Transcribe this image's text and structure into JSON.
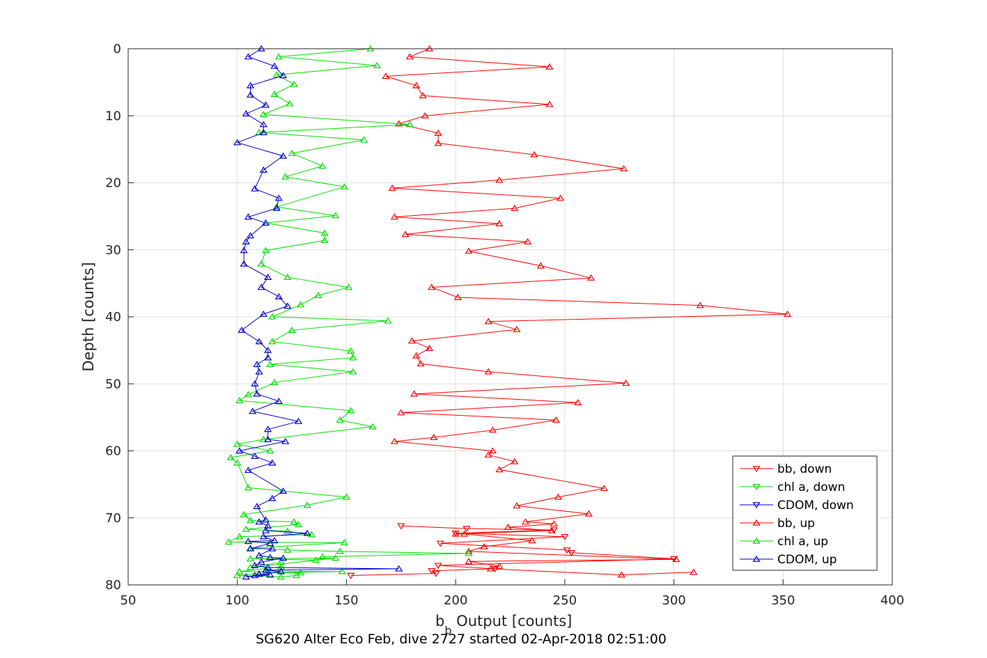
{
  "chart_data": {
    "type": "line",
    "xlabel": "b",
    "xlabel_sub": "b",
    "xlabel_rest": " Output [counts]",
    "ylabel": "Depth [counts]",
    "caption": "SG620 Alter Eco Feb, dive 2727 started 02-Apr-2018 02:51:00",
    "xlim": [
      50,
      400
    ],
    "ylim": [
      0,
      80
    ],
    "y_reversed": true,
    "grid": true,
    "legend_position": "bottom-right",
    "xticks": [
      50,
      100,
      150,
      200,
      250,
      300,
      350,
      400
    ],
    "yticks": [
      0,
      10,
      20,
      30,
      40,
      50,
      60,
      70,
      80
    ],
    "series": [
      {
        "name": "bb, down",
        "color": "#ff0000",
        "marker": "triangle-down",
        "points": [
          [
            175,
            71.2
          ],
          [
            205,
            71.6
          ],
          [
            245,
            71.8
          ],
          [
            200,
            72.3
          ],
          [
            250,
            72.8
          ],
          [
            193,
            73.8
          ],
          [
            251,
            74.8
          ],
          [
            253,
            75.2
          ],
          [
            300,
            76.1
          ],
          [
            192,
            77.1
          ],
          [
            218,
            77.6
          ],
          [
            189,
            77.9
          ],
          [
            191,
            78.3
          ],
          [
            152,
            78.6
          ]
        ]
      },
      {
        "name": "chl a, down",
        "color": "#00dd00",
        "marker": "triangle-down",
        "points": []
      },
      {
        "name": "CDOM, down",
        "color": "#0000cc",
        "marker": "triangle-down",
        "points": []
      },
      {
        "name": "bb, up",
        "color": "#ff0000",
        "marker": "triangle-up",
        "points": [
          [
            188,
            0
          ],
          [
            179,
            1.2
          ],
          [
            243,
            2.7
          ],
          [
            168,
            4.1
          ],
          [
            182,
            5.5
          ],
          [
            185,
            7.0
          ],
          [
            243,
            8.3
          ],
          [
            186,
            10.0
          ],
          [
            174,
            11.2
          ],
          [
            192,
            12.6
          ],
          [
            192,
            14.1
          ],
          [
            236,
            15.8
          ],
          [
            277,
            17.9
          ],
          [
            220,
            19.6
          ],
          [
            171,
            20.8
          ],
          [
            248,
            22.3
          ],
          [
            227,
            23.8
          ],
          [
            172,
            25.1
          ],
          [
            220,
            26.1
          ],
          [
            177,
            27.7
          ],
          [
            233,
            28.8
          ],
          [
            206,
            30.2
          ],
          [
            239,
            32.4
          ],
          [
            262,
            34.2
          ],
          [
            189,
            35.6
          ],
          [
            201,
            37.1
          ],
          [
            312,
            38.3
          ],
          [
            352,
            39.6
          ],
          [
            215,
            40.7
          ],
          [
            228,
            41.9
          ],
          [
            180,
            43.6
          ],
          [
            188,
            44.7
          ],
          [
            182,
            45.8
          ],
          [
            184,
            47.0
          ],
          [
            215,
            48.2
          ],
          [
            278,
            49.9
          ],
          [
            181,
            51.5
          ],
          [
            256,
            52.8
          ],
          [
            175,
            54.3
          ],
          [
            246,
            55.4
          ],
          [
            217,
            56.9
          ],
          [
            190,
            58.0
          ],
          [
            172,
            58.6
          ],
          [
            217,
            60.0
          ],
          [
            215,
            60.6
          ],
          [
            227,
            61.6
          ],
          [
            220,
            62.8
          ],
          [
            268,
            65.6
          ],
          [
            247,
            66.9
          ],
          [
            228,
            68.2
          ],
          [
            261,
            69.4
          ],
          [
            232,
            70.6
          ],
          [
            245,
            70.9
          ],
          [
            224,
            71.4
          ],
          [
            244,
            71.9
          ],
          [
            200,
            72.4
          ],
          [
            204,
            72.4
          ],
          [
            235,
            73.4
          ],
          [
            213,
            74.3
          ],
          [
            206,
            75.0
          ],
          [
            301,
            76.2
          ],
          [
            206,
            76.5
          ],
          [
            220,
            77.2
          ],
          [
            216,
            77.6
          ],
          [
            276,
            78.5
          ],
          [
            309,
            78.1
          ]
        ]
      },
      {
        "name": "chl a, up",
        "color": "#00dd00",
        "marker": "triangle-up",
        "points": [
          [
            161,
            0
          ],
          [
            119,
            1.2
          ],
          [
            164,
            2.5
          ],
          [
            118,
            3.9
          ],
          [
            126,
            5.3
          ],
          [
            117,
            6.8
          ],
          [
            124,
            8.2
          ],
          [
            112,
            9.8
          ],
          [
            179,
            11.3
          ],
          [
            110,
            12.5
          ],
          [
            158,
            13.6
          ],
          [
            125,
            15.6
          ],
          [
            139,
            17.5
          ],
          [
            122,
            19.1
          ],
          [
            149,
            20.6
          ],
          [
            118,
            23.6
          ],
          [
            145,
            24.9
          ],
          [
            113,
            26.0
          ],
          [
            140,
            27.5
          ],
          [
            140,
            28.6
          ],
          [
            113,
            30.1
          ],
          [
            111,
            32.1
          ],
          [
            123,
            34.1
          ],
          [
            151,
            35.6
          ],
          [
            137,
            36.8
          ],
          [
            129,
            38.2
          ],
          [
            116,
            40.0
          ],
          [
            169,
            40.6
          ],
          [
            125,
            42.0
          ],
          [
            116,
            43.7
          ],
          [
            152,
            45.1
          ],
          [
            153,
            46.1
          ],
          [
            115,
            47.1
          ],
          [
            153,
            48.2
          ],
          [
            117,
            49.8
          ],
          [
            105,
            51.6
          ],
          [
            101,
            52.5
          ],
          [
            152,
            54.0
          ],
          [
            147,
            55.4
          ],
          [
            162,
            56.4
          ],
          [
            112,
            58.3
          ],
          [
            100,
            59.0
          ],
          [
            115,
            60.0
          ],
          [
            97,
            61.0
          ],
          [
            100,
            61.8
          ],
          [
            105,
            65.5
          ],
          [
            150,
            66.9
          ],
          [
            132,
            68.1
          ],
          [
            103,
            69.5
          ],
          [
            106,
            70.4
          ],
          [
            126,
            70.6
          ],
          [
            128,
            71.0
          ],
          [
            104,
            71.7
          ],
          [
            123,
            72.0
          ],
          [
            134,
            72.5
          ],
          [
            101,
            72.8
          ],
          [
            96,
            73.6
          ],
          [
            149,
            73.7
          ],
          [
            106,
            74.5
          ],
          [
            123,
            74.8
          ],
          [
            147,
            75.0
          ],
          [
            206,
            75.3
          ],
          [
            139,
            75.8
          ],
          [
            136,
            76.3
          ],
          [
            106,
            76.1
          ],
          [
            145,
            76.0
          ],
          [
            106,
            77.4
          ],
          [
            120,
            76.6
          ],
          [
            120,
            77.3
          ],
          [
            101,
            78.0
          ],
          [
            148,
            78.0
          ],
          [
            113,
            78.2
          ],
          [
            129,
            78.2
          ],
          [
            127,
            78.6
          ],
          [
            120,
            78.8
          ],
          [
            100,
            78.6
          ],
          [
            110,
            78.3
          ]
        ]
      },
      {
        "name": "CDOM, up",
        "color": "#0000cc",
        "marker": "triangle-up",
        "points": [
          [
            111,
            0
          ],
          [
            105,
            1.2
          ],
          [
            117,
            2.6
          ],
          [
            121,
            4.0
          ],
          [
            106,
            5.5
          ],
          [
            106,
            6.9
          ],
          [
            113,
            8.4
          ],
          [
            104,
            9.7
          ],
          [
            112,
            11.3
          ],
          [
            112,
            12.5
          ],
          [
            100,
            14.0
          ],
          [
            121,
            16.0
          ],
          [
            112,
            18.1
          ],
          [
            108,
            20.9
          ],
          [
            119,
            22.3
          ],
          [
            118,
            23.8
          ],
          [
            105,
            25.1
          ],
          [
            113,
            26.0
          ],
          [
            106,
            27.9
          ],
          [
            104,
            28.8
          ],
          [
            103,
            30.1
          ],
          [
            103,
            32.1
          ],
          [
            114,
            34.1
          ],
          [
            111,
            35.6
          ],
          [
            119,
            37.0
          ],
          [
            123,
            38.4
          ],
          [
            112,
            39.6
          ],
          [
            102,
            42.0
          ],
          [
            110,
            43.7
          ],
          [
            114,
            45.0
          ],
          [
            114,
            46.1
          ],
          [
            109,
            47.1
          ],
          [
            110,
            48.2
          ],
          [
            108,
            50.0
          ],
          [
            109,
            51.5
          ],
          [
            119,
            52.6
          ],
          [
            107,
            54.1
          ],
          [
            128,
            55.6
          ],
          [
            114,
            56.8
          ],
          [
            114,
            58.3
          ],
          [
            122,
            58.6
          ],
          [
            101,
            60.0
          ],
          [
            108,
            60.8
          ],
          [
            116,
            61.8
          ],
          [
            105,
            62.9
          ],
          [
            121,
            66.0
          ],
          [
            116,
            67.1
          ],
          [
            109,
            68.3
          ],
          [
            113,
            70.3
          ],
          [
            110,
            70.6
          ],
          [
            114,
            71.2
          ],
          [
            113,
            71.9
          ],
          [
            132,
            72.3
          ],
          [
            112,
            72.8
          ],
          [
            117,
            73.4
          ],
          [
            105,
            73.5
          ],
          [
            115,
            73.8
          ],
          [
            106,
            74.6
          ],
          [
            116,
            74.6
          ],
          [
            110,
            75.6
          ],
          [
            115,
            75.9
          ],
          [
            121,
            76.0
          ],
          [
            111,
            76.6
          ],
          [
            108,
            77.1
          ],
          [
            114,
            77.4
          ],
          [
            174,
            77.6
          ],
          [
            113,
            77.8
          ],
          [
            120,
            78.0
          ],
          [
            108,
            78.6
          ],
          [
            104,
            78.8
          ],
          [
            115,
            78.5
          ],
          [
            110,
            78.4
          ]
        ]
      }
    ]
  }
}
